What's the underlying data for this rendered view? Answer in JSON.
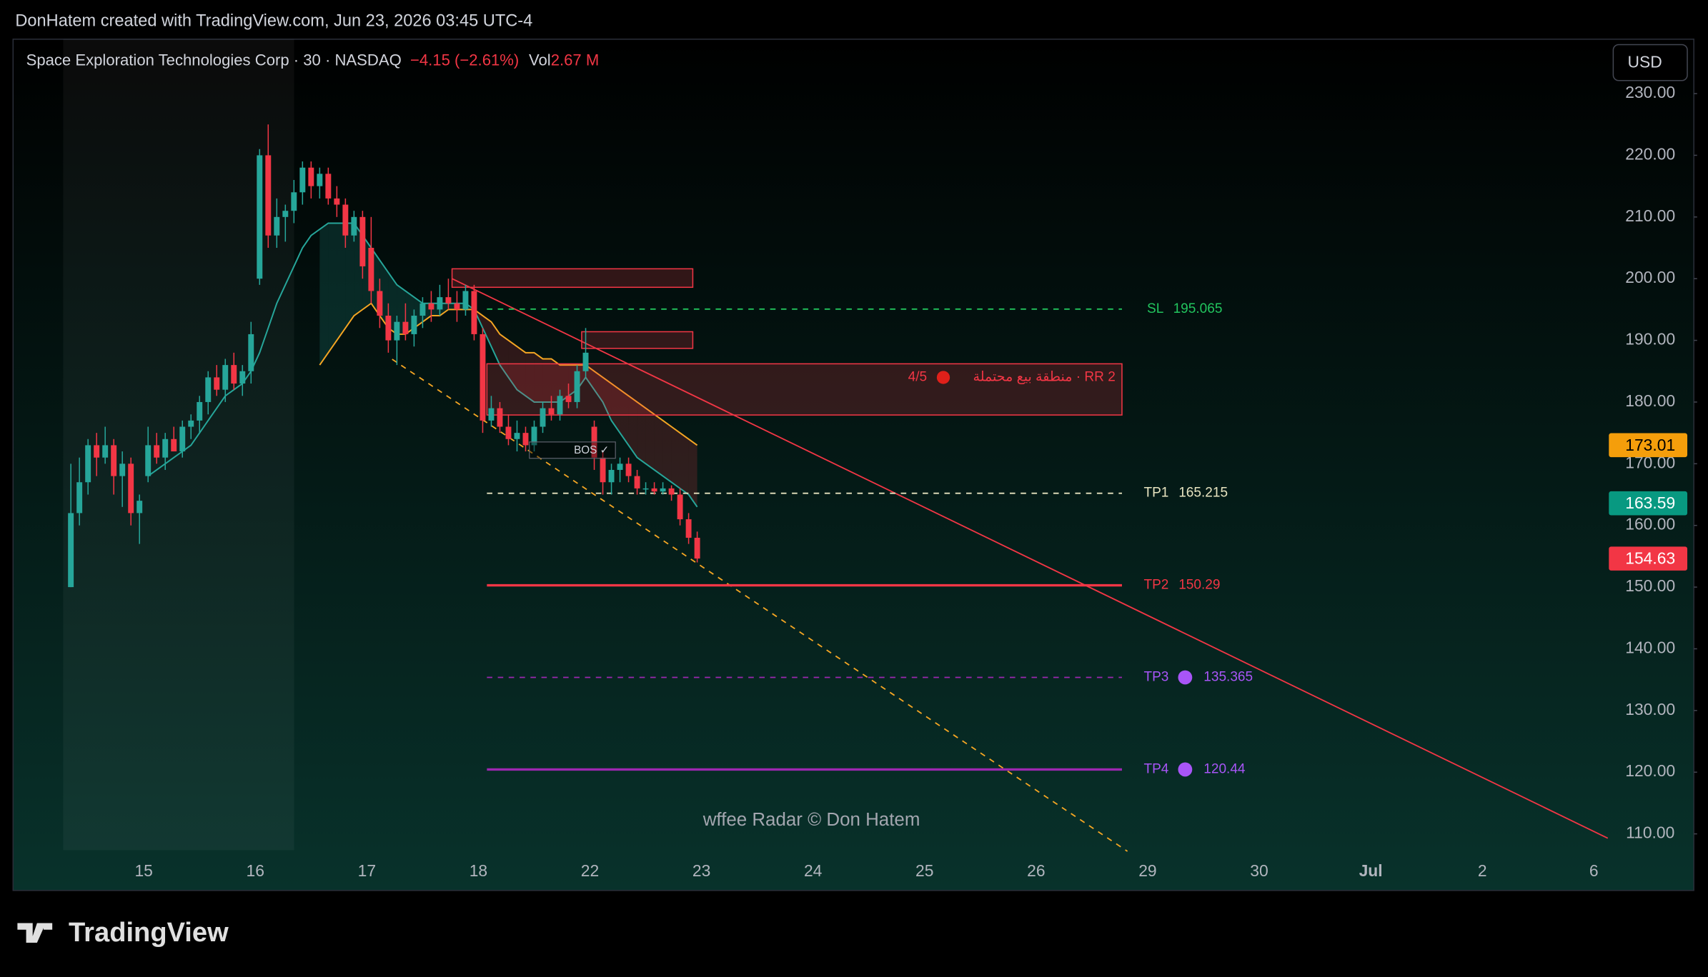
{
  "header": "DonHatem created with TradingView.com, Jun 23, 2026 03:45 UTC-4",
  "footer_logo": "TradingView",
  "chart_data": {
    "type": "candlestick",
    "title": "Space Exploration Technologies Corp · 30 · NASDAQ",
    "change": "−4.15 (−2.61%)",
    "volume_label": "Vol",
    "volume": "2.67 M",
    "currency": "USD",
    "watermark": "wffee Radar © Don Hatem",
    "up_color": "#26a69a",
    "down_color": "#f23645",
    "ema_fast_color": "#26a69a",
    "ema_slow_color": "#f5a623",
    "categories": [
      null,
      "15",
      "16",
      "17",
      "18",
      "22",
      "23",
      "24",
      "25",
      "26",
      "29",
      "30",
      "Jul",
      "2",
      "6"
    ],
    "days": [
      {
        "open": [
          150,
          162,
          167,
          173,
          171,
          173,
          168,
          170,
          162
        ],
        "high": [
          170,
          171,
          174,
          175,
          176,
          174,
          172,
          171,
          165
        ],
        "low": [
          150,
          160,
          165,
          168,
          170,
          165,
          163,
          160,
          157
        ],
        "close": [
          162,
          167,
          173,
          171,
          173,
          168,
          170,
          162,
          164
        ],
        "ema_fast": [
          null,
          null,
          null,
          null,
          null,
          null,
          null,
          null,
          null
        ],
        "ema_slow": [
          null,
          null,
          null,
          null,
          null,
          null,
          null,
          null,
          null
        ]
      },
      {
        "open": [
          168,
          173,
          171,
          174,
          172,
          176,
          177,
          180,
          184,
          182,
          186,
          183,
          185
        ],
        "high": [
          176,
          175,
          175,
          176,
          177,
          178,
          181,
          185,
          186,
          187,
          188,
          186,
          193
        ],
        "low": [
          167,
          170,
          169,
          172,
          171,
          174,
          175,
          178,
          181,
          180,
          182,
          181,
          183
        ],
        "close": [
          173,
          171,
          174,
          172,
          176,
          177,
          180,
          184,
          182,
          186,
          183,
          185,
          191
        ],
        "ema_fast": [
          168,
          169,
          170,
          171,
          172,
          173,
          175,
          177,
          179,
          181,
          182,
          183,
          185
        ],
        "ema_slow": [
          null,
          null,
          null,
          null,
          null,
          null,
          null,
          null,
          null,
          null,
          null,
          null,
          null
        ]
      },
      {
        "open": [
          200,
          220,
          207,
          210,
          211,
          214,
          218,
          215,
          217,
          213,
          212,
          207,
          210
        ],
        "high": [
          221,
          225,
          213,
          212,
          216,
          219,
          219,
          218,
          218,
          215,
          213,
          211,
          211
        ],
        "low": [
          199,
          205,
          205,
          206,
          209,
          212,
          213,
          213,
          212,
          210,
          205,
          206,
          200
        ],
        "close": [
          220,
          207,
          210,
          211,
          214,
          218,
          215,
          217,
          213,
          212,
          207,
          210,
          202
        ],
        "ema_fast": [
          188,
          192,
          196,
          199,
          202,
          205,
          207,
          208,
          209,
          209,
          209,
          209,
          207
        ],
        "ema_slow": [
          null,
          null,
          null,
          null,
          null,
          null,
          null,
          186,
          188,
          190,
          192,
          194,
          195
        ]
      },
      {
        "open": [
          205,
          198,
          194,
          190,
          193,
          191,
          194,
          196,
          195,
          197,
          196,
          195,
          198
        ],
        "high": [
          210,
          200,
          196,
          194,
          196,
          195,
          197,
          198,
          199,
          200,
          198,
          199,
          199
        ],
        "low": [
          196,
          192,
          188,
          186,
          190,
          189,
          192,
          193,
          194,
          195,
          193,
          194,
          190
        ],
        "close": [
          198,
          194,
          190,
          193,
          191,
          194,
          196,
          195,
          197,
          196,
          195,
          198,
          191
        ],
        "ema_fast": [
          205,
          203,
          201,
          199,
          198,
          197,
          196,
          196,
          196,
          196,
          196,
          196,
          195
        ],
        "ema_slow": [
          196,
          194,
          192,
          191,
          191,
          192,
          193,
          194,
          194,
          195,
          195,
          195,
          195
        ]
      },
      {
        "open": [
          191,
          177,
          179,
          176,
          174,
          175,
          173,
          176,
          179,
          178,
          181,
          180,
          185
        ],
        "high": [
          192,
          181,
          180,
          178,
          177,
          176,
          177,
          180,
          181,
          182,
          183,
          186,
          192
        ],
        "low": [
          175,
          176,
          175,
          173,
          172,
          172,
          172,
          175,
          177,
          177,
          179,
          179,
          184
        ],
        "close": [
          177,
          179,
          176,
          174,
          175,
          173,
          176,
          179,
          178,
          181,
          180,
          185,
          188
        ],
        "ema_fast": [
          192,
          189,
          186,
          184,
          182,
          181,
          180,
          180,
          180,
          180,
          181,
          182,
          184
        ],
        "ema_slow": [
          194,
          193,
          191,
          190,
          189,
          188,
          188,
          187,
          187,
          186,
          186,
          186,
          186
        ]
      },
      {
        "open": [
          176,
          171,
          167,
          169,
          170,
          168,
          166,
          166,
          165.5,
          166,
          165,
          161,
          158
        ],
        "high": [
          177,
          172,
          170,
          171,
          171,
          169,
          167,
          167,
          167,
          166.5,
          166,
          162,
          159
        ],
        "low": [
          169,
          165,
          165,
          167,
          167,
          165,
          165,
          165,
          165,
          164,
          160,
          157,
          154
        ],
        "close": [
          171,
          167,
          169,
          170,
          168,
          166,
          166,
          165.5,
          166,
          165,
          161,
          158,
          154.63
        ],
        "ema_fast": [
          182,
          180,
          177,
          175,
          173,
          171,
          170,
          169,
          168,
          167,
          166,
          165,
          163
        ],
        "ema_slow": [
          185,
          184,
          183,
          182,
          181,
          180,
          179,
          178,
          177,
          176,
          175,
          174,
          173
        ]
      }
    ],
    "ylim": [
      107.18,
      238.82
    ],
    "yticks": [
      {
        "value": 110,
        "label": "110.00"
      },
      {
        "value": 120,
        "label": "120.00"
      },
      {
        "value": 130,
        "label": "130.00"
      },
      {
        "value": 140,
        "label": "140.00"
      },
      {
        "value": 150,
        "label": "150.00"
      },
      {
        "value": 160,
        "label": "160.00"
      },
      {
        "value": 170,
        "label": "170.00"
      },
      {
        "value": 180,
        "label": "180.00"
      },
      {
        "value": 190,
        "label": "190.00"
      },
      {
        "value": 200,
        "label": "200.00"
      },
      {
        "value": 210,
        "label": "210.00"
      },
      {
        "value": 220,
        "label": "220.00"
      },
      {
        "value": 230,
        "label": "230.00"
      }
    ],
    "levels": [
      {
        "name": "SL",
        "value": 195.065,
        "color": "#22c55e",
        "dashed": true
      },
      {
        "name": "TP1",
        "value": 165.215,
        "color": "#e8e4c0",
        "dashed": true
      },
      {
        "name": "TP2",
        "value": 150.29,
        "color": "#f23645",
        "dashed": false
      },
      {
        "name": "TP3",
        "value": 135.365,
        "color": "#9c27b0",
        "dashed": true,
        "dot": "#a855f7"
      },
      {
        "name": "TP4",
        "value": 120.44,
        "color": "#9c27b0",
        "dashed": false,
        "dot": "#a855f7"
      }
    ],
    "zones": [
      {
        "top": 201.6,
        "bottom": 198.6
      },
      {
        "top": 191.4,
        "bottom": 188.7
      },
      {
        "top": 186.2,
        "bottom": 177.9,
        "label_left": "4/5",
        "label_right": "منطقة بيع محتملة  ·  RR 2"
      }
    ],
    "bos_label": "BOS ✓",
    "price_labels": [
      {
        "value": 173.01,
        "color": "#f59e0b"
      },
      {
        "value": 163.59,
        "color": "#089981"
      },
      {
        "value": 154.63,
        "color": "#f23645"
      }
    ]
  }
}
